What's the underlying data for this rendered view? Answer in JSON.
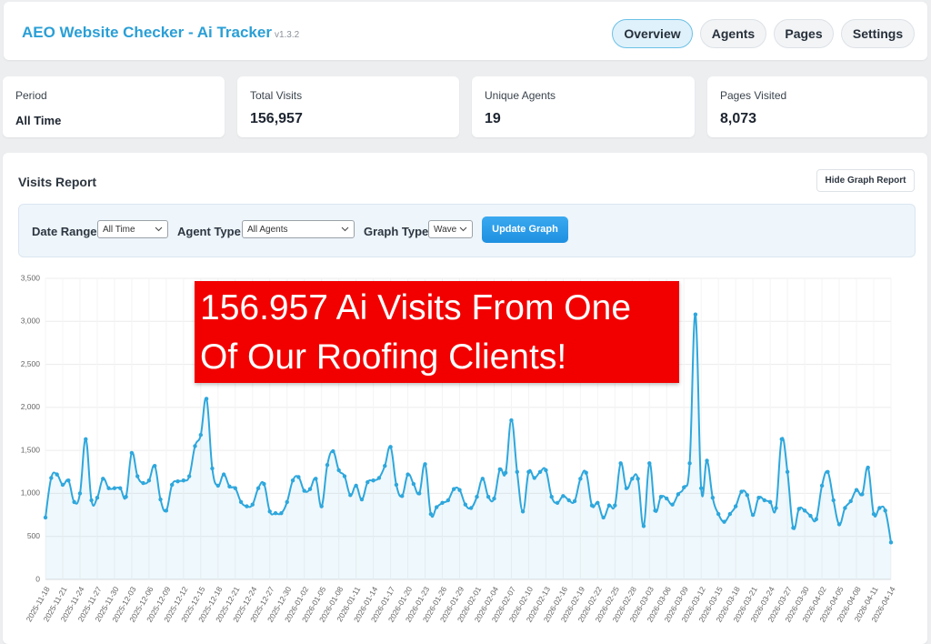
{
  "header": {
    "title": "AEO Website Checker - Ai Tracker",
    "version": "v1.3.2"
  },
  "nav": [
    "Overview",
    "Agents",
    "Pages",
    "Settings"
  ],
  "stats": [
    {
      "label": "Period",
      "value": "All Time"
    },
    {
      "label": "Total Visits",
      "value": "156,957"
    },
    {
      "label": "Unique Agents",
      "value": "19"
    },
    {
      "label": "Pages Visited",
      "value": "8,073"
    }
  ],
  "report": {
    "title": "Visits Report",
    "button": "Hide Graph Report"
  },
  "filters": {
    "items": [
      {
        "label": "Date Range",
        "value": "All Time"
      },
      {
        "label": "Agent Type",
        "value": "All Agents"
      },
      {
        "label": "Graph Type",
        "value": "Wave"
      }
    ],
    "update": "Update Graph"
  },
  "banner": {
    "lines": [
      "156.957 Ai Visits From One",
      "Of Our Roofing Clients!"
    ]
  },
  "chart_data": {
    "type": "line",
    "color": "#2ea7dc",
    "grid": true,
    "ylim": [
      0,
      3500
    ],
    "yticks": [
      0,
      500,
      {
        "value": 1000,
        "label": "1,000"
      },
      {
        "value": 1500,
        "label": "1,500"
      },
      {
        "value": 2000,
        "label": "2,000"
      },
      {
        "value": 2500,
        "label": "2,500"
      },
      {
        "value": 3000,
        "label": "3,000"
      },
      {
        "value": 3500,
        "label": "3,500"
      }
    ],
    "categories": [
      "2025-11-18",
      null,
      null,
      "2025-11-21",
      null,
      null,
      "2025-11-24",
      null,
      null,
      "2025-11-27",
      null,
      null,
      "2025-11-30",
      null,
      null,
      "2025-12-03",
      null,
      null,
      "2025-12-06",
      null,
      null,
      "2025-12-09",
      null,
      null,
      "2025-12-12",
      null,
      null,
      "2025-12-15",
      null,
      null,
      "2025-12-18",
      null,
      null,
      "2025-12-21",
      null,
      null,
      "2025-12-24",
      null,
      null,
      "2025-12-27",
      null,
      null,
      "2025-12-30",
      null,
      null,
      "2026-01-02",
      null,
      null,
      "2026-01-05",
      null,
      null,
      "2026-01-08",
      null,
      null,
      "2026-01-11",
      null,
      null,
      "2026-01-14",
      null,
      null,
      "2026-01-17",
      null,
      null,
      "2026-01-20",
      null,
      null,
      "2026-01-23",
      null,
      null,
      "2026-01-26",
      null,
      null,
      "2026-01-29",
      null,
      null,
      "2026-02-01",
      null,
      null,
      "2026-02-04",
      null,
      null,
      "2026-02-07",
      null,
      null,
      "2026-02-10",
      null,
      null,
      "2026-02-13",
      null,
      null,
      "2026-02-16",
      null,
      null,
      "2026-02-19",
      null,
      null,
      "2026-02-22",
      null,
      null,
      "2026-02-25",
      null,
      null,
      "2026-02-28",
      null,
      null,
      "2026-03-03",
      null,
      null,
      "2026-03-06",
      null,
      null,
      "2026-03-09",
      null,
      null,
      "2026-03-12",
      null,
      null,
      "2026-03-15",
      null,
      null,
      "2026-03-18",
      null,
      null,
      "2026-03-21",
      null,
      null,
      "2026-03-24",
      null,
      null,
      "2026-03-27",
      null,
      null,
      "2026-03-30",
      null,
      null,
      "2026-04-02",
      null,
      null,
      "2026-04-05",
      null,
      null,
      "2026-04-08",
      null,
      null,
      "2026-04-11",
      null,
      null,
      "2026-04-14"
    ],
    "values": [
      720,
      1180,
      1220,
      1100,
      1150,
      900,
      1000,
      1630,
      920,
      950,
      1170,
      1060,
      1060,
      1060,
      960,
      1470,
      1200,
      1120,
      1150,
      1320,
      930,
      800,
      1100,
      1140,
      1150,
      1200,
      1550,
      1680,
      2100,
      1290,
      1090,
      1220,
      1080,
      1060,
      900,
      850,
      870,
      1060,
      1110,
      790,
      770,
      770,
      900,
      1150,
      1190,
      1030,
      1050,
      1170,
      850,
      1330,
      1490,
      1270,
      1200,
      980,
      1090,
      930,
      1130,
      1150,
      1180,
      1320,
      1540,
      1100,
      970,
      1220,
      1110,
      1000,
      1340,
      760,
      840,
      890,
      920,
      1050,
      1040,
      870,
      830,
      960,
      1170,
      960,
      940,
      1280,
      1240,
      1850,
      1250,
      790,
      1250,
      1180,
      1250,
      1270,
      960,
      890,
      970,
      920,
      910,
      1170,
      1240,
      860,
      890,
      720,
      860,
      860,
      1350,
      1060,
      1170,
      1170,
      620,
      1350,
      800,
      960,
      940,
      870,
      990,
      1070,
      1350,
      3080,
      1060,
      1380,
      950,
      760,
      670,
      760,
      850,
      1020,
      980,
      750,
      950,
      920,
      900,
      830,
      1630,
      1250,
      600,
      820,
      800,
      740,
      700,
      1090,
      1250,
      920,
      640,
      830,
      910,
      1040,
      990,
      1300,
      760,
      830,
      800,
      430
    ]
  }
}
